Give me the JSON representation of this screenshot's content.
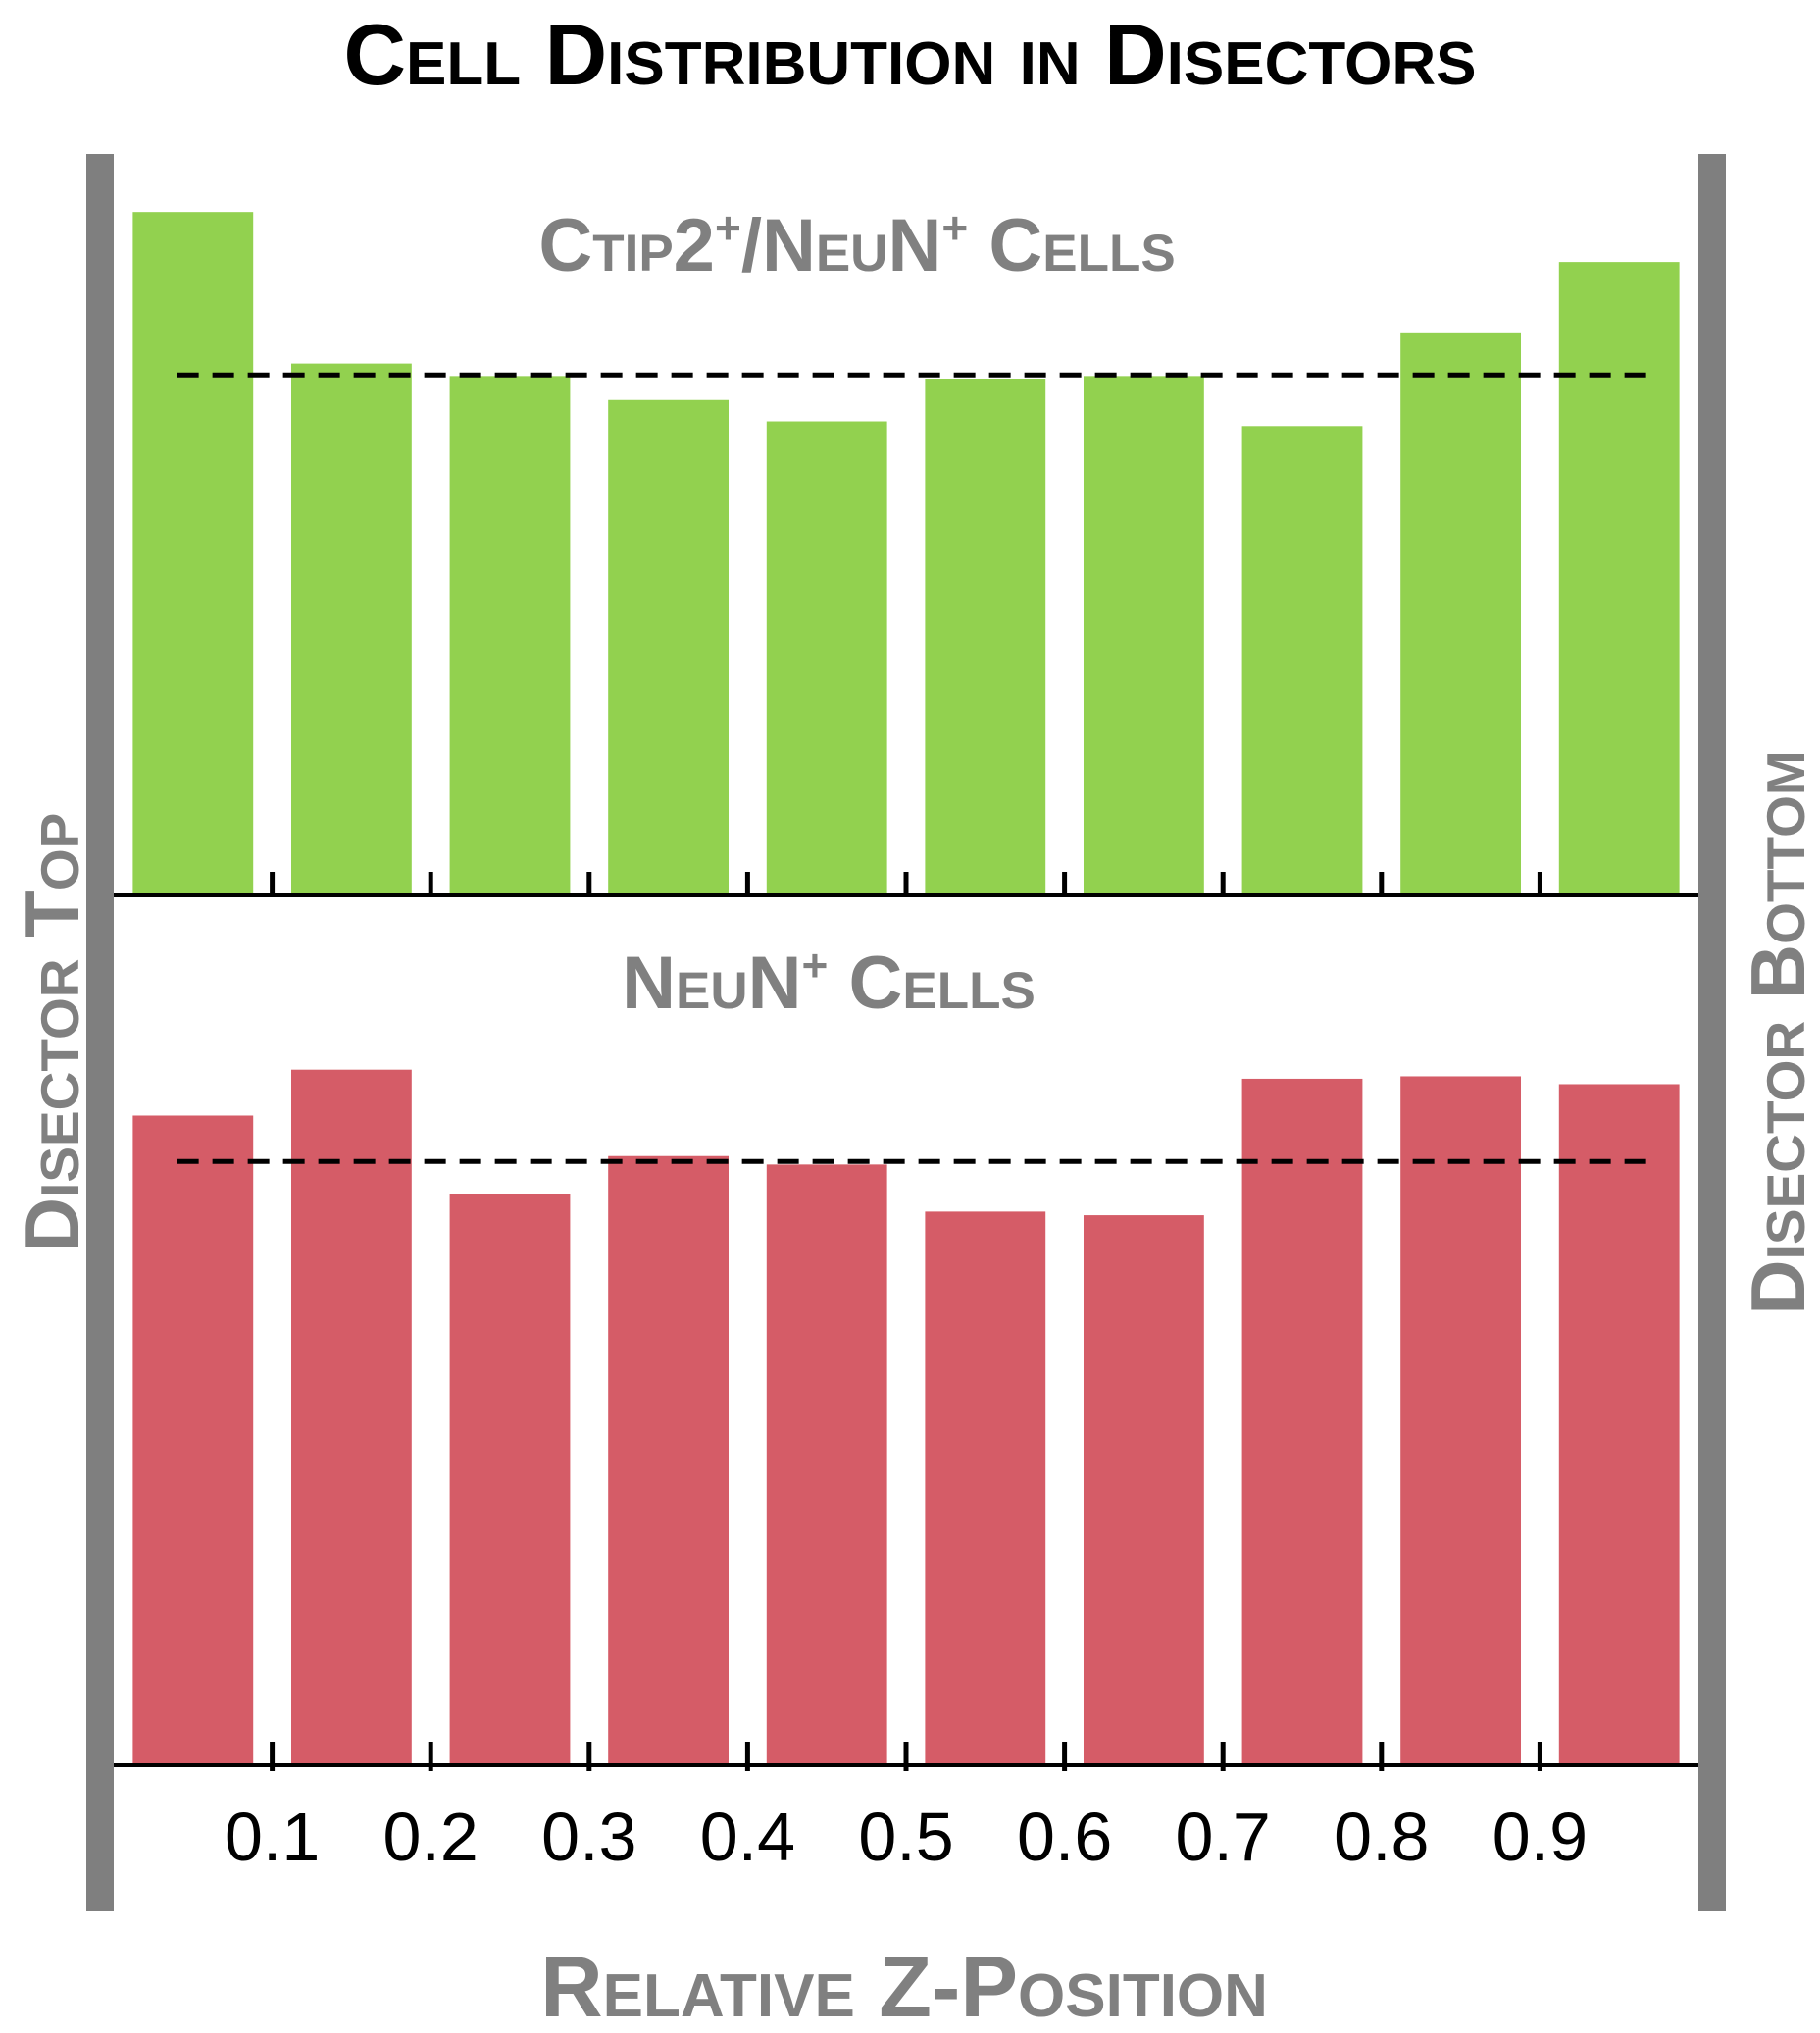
{
  "title": "Cell Distribution in Disectors",
  "left_label": "Disector Top",
  "right_label": "Disector Bottom",
  "colors": {
    "green": "#92d14f",
    "red": "#d55c67",
    "gray_text": "#808080",
    "side_bar": "#7f7f7f",
    "black": "#000000"
  },
  "chart_data": [
    {
      "type": "bar",
      "panel_title": {
        "main": "Ctip2",
        "sup": "+",
        "slash": "/",
        "main2": "NeuN",
        "sup2": "+",
        "tail": " Cells"
      },
      "x": [
        0.05,
        0.15,
        0.25,
        0.35,
        0.45,
        0.55,
        0.65,
        0.75,
        0.85,
        0.95
      ],
      "values": [
        1.313,
        1.022,
        0.998,
        0.952,
        0.911,
        0.993,
        0.998,
        0.902,
        1.08,
        1.217
      ],
      "reference_line": 1.0,
      "ylim": [
        0,
        1.4
      ],
      "color": "#92d14f"
    },
    {
      "type": "bar",
      "panel_title": {
        "main": "NeuN",
        "sup": "+",
        "tail": " Cells"
      },
      "x": [
        0.05,
        0.15,
        0.25,
        0.35,
        0.45,
        0.55,
        0.65,
        0.75,
        0.85,
        0.95
      ],
      "values": [
        1.076,
        1.152,
        0.946,
        1.009,
        0.995,
        0.917,
        0.911,
        1.137,
        1.141,
        1.128
      ],
      "reference_line": 1.0,
      "ylim": [
        0,
        1.4
      ],
      "color": "#d55c67"
    }
  ],
  "x_axis": {
    "label": "Relative Z-Position",
    "ticks": [
      "0.1",
      "0.2",
      "0.3",
      "0.4",
      "0.5",
      "0.6",
      "0.7",
      "0.8",
      "0.9"
    ],
    "xlim": [
      0,
      1
    ]
  }
}
